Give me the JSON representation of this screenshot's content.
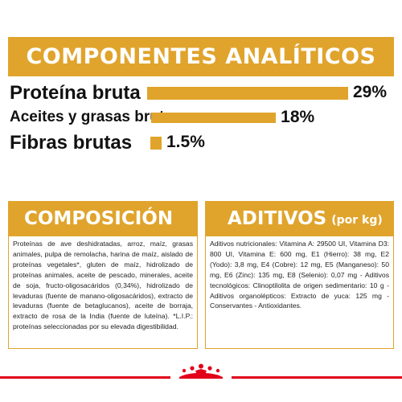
{
  "title": "COMPONENTES ANALÍTICOS",
  "colors": {
    "accent": "#E0A42C",
    "brand_red": "#E2001A"
  },
  "analytics": [
    {
      "label": "Proteína bruta",
      "value_text": "29%",
      "percent": 29
    },
    {
      "label": "Aceites y grasas brutos",
      "value_text": "18%",
      "percent": 18
    },
    {
      "label": "Fibras brutas",
      "value_text": "1.5%",
      "percent": 1.5
    }
  ],
  "composition": {
    "title": "COMPOSICIÓN",
    "text": "Proteínas de ave deshidratadas, arroz, maíz, grasas animales, pulpa de remolacha, harina de maíz, aislado de proteínas vegetales*, gluten de maíz, hidrolizado de proteínas animales, aceite de pescado, minerales, aceite de soja, fructo-oligosacáridos (0,34%), hidrolizado de levaduras (fuente de manano-oligosacáridos), extracto de levaduras (fuente de betaglucanos), aceite de borraja, extracto de rosa de la India (fuente de luteína). *L.I.P.: proteínas seleccionadas por su elevada digestibilidad."
  },
  "additives": {
    "title": "ADITIVOS",
    "subtitle": "(por kg)",
    "text": "Aditivos nutricionales: Vitamina A: 29500 UI, Vitamina D3: 800 UI, Vitamina E: 600 mg, E1 (Hierro): 38 mg, E2 (Yodo): 3,8 mg, E4 (Cobre): 12 mg, E5 (Manganeso): 50 mg, E6 (Zinc): 135 mg, E8 (Selenio): 0,07 mg - Aditivos tecnológicos: Clinoptilolita de origen sedimentario: 10 g - Aditivos organolépticos: Extracto de yuca: 125 mg - Conservantes - Antioxidantes."
  },
  "logo_icon": "royal-canin-crown-icon"
}
